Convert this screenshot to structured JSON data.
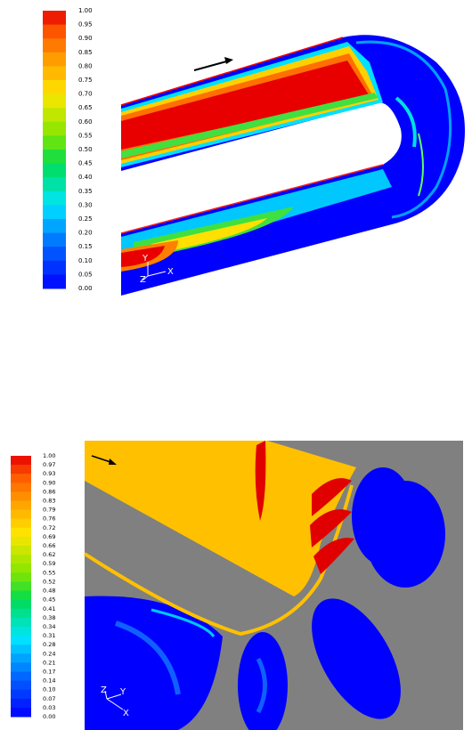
{
  "top_panel": {
    "colorbar_labels": [
      "1.00",
      "0.95",
      "0.90",
      "0.85",
      "0.80",
      "0.75",
      "0.70",
      "0.65",
      "0.60",
      "0.55",
      "0.50",
      "0.45",
      "0.40",
      "0.35",
      "0.30",
      "0.25",
      "0.20",
      "0.15",
      "0.10",
      "0.05",
      "0.00"
    ],
    "axis_labels": [
      "Y",
      "Z",
      "X"
    ]
  },
  "bottom_panel": {
    "colorbar_labels": [
      "1.00",
      "0.97",
      "0.93",
      "0.90",
      "0.86",
      "0.83",
      "0.79",
      "0.76",
      "0.72",
      "0.69",
      "0.66",
      "0.62",
      "0.59",
      "0.55",
      "0.52",
      "0.48",
      "0.45",
      "0.41",
      "0.38",
      "0.34",
      "0.31",
      "0.28",
      "0.24",
      "0.21",
      "0.17",
      "0.14",
      "0.10",
      "0.07",
      "0.03",
      "0.00"
    ],
    "axis_labels": [
      "Z",
      "Y",
      "X"
    ]
  }
}
